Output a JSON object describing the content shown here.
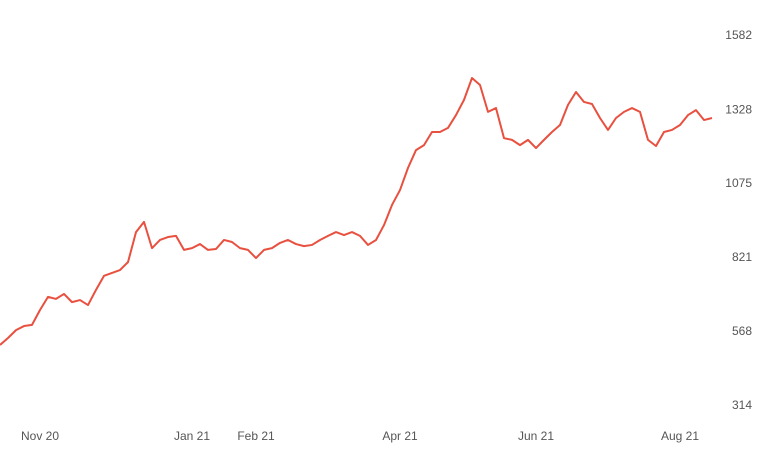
{
  "chart_data": {
    "type": "line",
    "categories": [
      null,
      null,
      null,
      null,
      null,
      "Nov 20",
      null,
      null,
      null,
      null,
      null,
      null,
      null,
      null,
      null,
      null,
      null,
      null,
      null,
      null,
      null,
      null,
      null,
      null,
      "Jan 21",
      null,
      null,
      null,
      null,
      null,
      null,
      null,
      "Feb 21",
      null,
      null,
      null,
      null,
      null,
      null,
      null,
      null,
      null,
      null,
      null,
      null,
      null,
      null,
      null,
      null,
      null,
      "Apr 21",
      null,
      null,
      null,
      null,
      null,
      null,
      null,
      null,
      null,
      null,
      null,
      null,
      null,
      null,
      null,
      null,
      "Jun 21",
      null,
      null,
      null,
      null,
      null,
      null,
      null,
      null,
      null,
      null,
      null,
      null,
      null,
      null,
      null,
      null,
      null,
      "Aug 21",
      null,
      null,
      null,
      null
    ],
    "series": [
      {
        "color": "#e8503f",
        "values": [
          523,
          547,
          574,
          588,
          592,
          643,
          688,
          681,
          698,
          670,
          677,
          660,
          712,
          760,
          770,
          780,
          807,
          910,
          945,
          855,
          883,
          893,
          897,
          849,
          855,
          869,
          849,
          852,
          883,
          876,
          855,
          849,
          821,
          849,
          855,
          873,
          883,
          869,
          862,
          866,
          883,
          897,
          910,
          900,
          910,
          897,
          866,
          883,
          934,
          1003,
          1054,
          1130,
          1191,
          1208,
          1253,
          1253,
          1267,
          1311,
          1363,
          1438,
          1414,
          1322,
          1335,
          1232,
          1226,
          1208,
          1226,
          1198,
          1226,
          1253,
          1277,
          1346,
          1390,
          1356,
          1349,
          1301,
          1260,
          1301,
          1322,
          1335,
          1322,
          1226,
          1205,
          1253,
          1260,
          1277,
          1311,
          1328,
          1294,
          1301
        ]
      }
    ],
    "ylim": [
      314,
      1582
    ],
    "yticks": [
      314,
      568,
      821,
      1075,
      1328,
      1582
    ]
  }
}
